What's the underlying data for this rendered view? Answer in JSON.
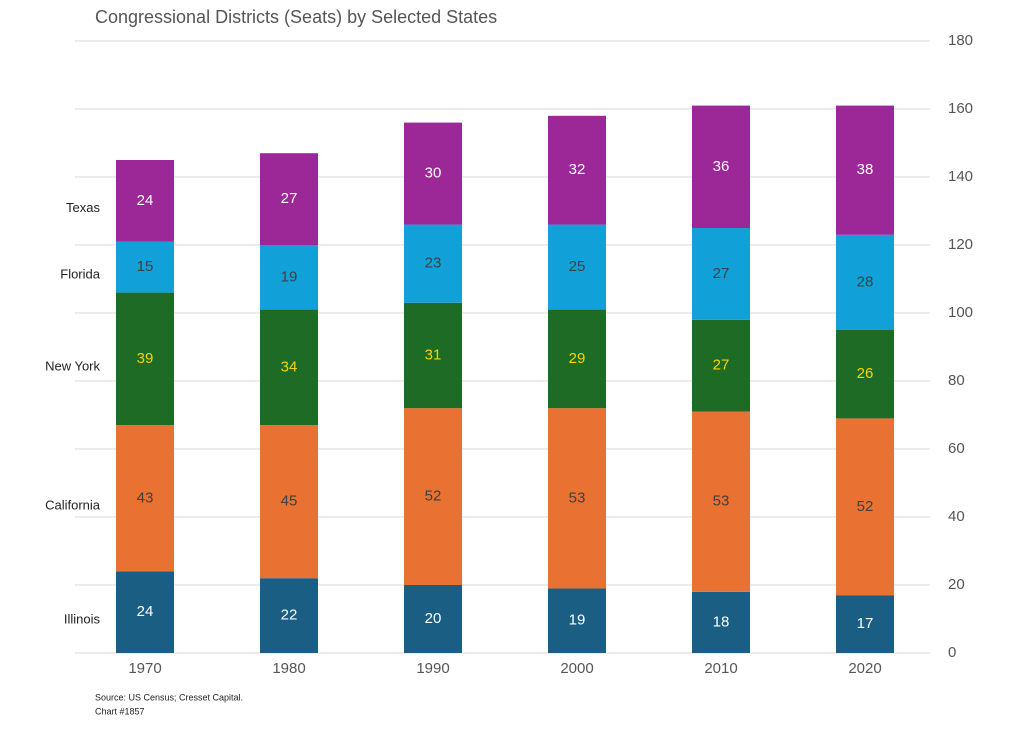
{
  "chart_data": {
    "type": "stacked-bar",
    "title": "Congressional Districts (Seats) by Selected States",
    "categories": [
      "1970",
      "1980",
      "1990",
      "2000",
      "2010",
      "2020"
    ],
    "series": [
      {
        "name": "Illinois",
        "color": "#1a5e83",
        "label_color": "#ffffff",
        "values": [
          24,
          22,
          20,
          19,
          18,
          17
        ]
      },
      {
        "name": "California",
        "color": "#e97132",
        "label_color": "#404040",
        "values": [
          43,
          45,
          52,
          53,
          53,
          52
        ]
      },
      {
        "name": "New York",
        "color": "#1e6b25",
        "label_color": "#ffd000",
        "values": [
          39,
          34,
          31,
          29,
          27,
          26
        ]
      },
      {
        "name": "Florida",
        "color": "#11a0d7",
        "label_color": "#404040",
        "values": [
          15,
          19,
          23,
          25,
          27,
          28
        ]
      },
      {
        "name": "Texas",
        "color": "#9c2797",
        "label_color": "#ffffff",
        "values": [
          24,
          27,
          30,
          32,
          36,
          38
        ]
      }
    ],
    "ylim": [
      0,
      180
    ],
    "yticks": [
      0,
      20,
      40,
      60,
      80,
      100,
      120,
      140,
      160,
      180
    ],
    "grid": true,
    "source": "Source: US Census; Cresset Capital.",
    "note": "Chart #1857"
  }
}
